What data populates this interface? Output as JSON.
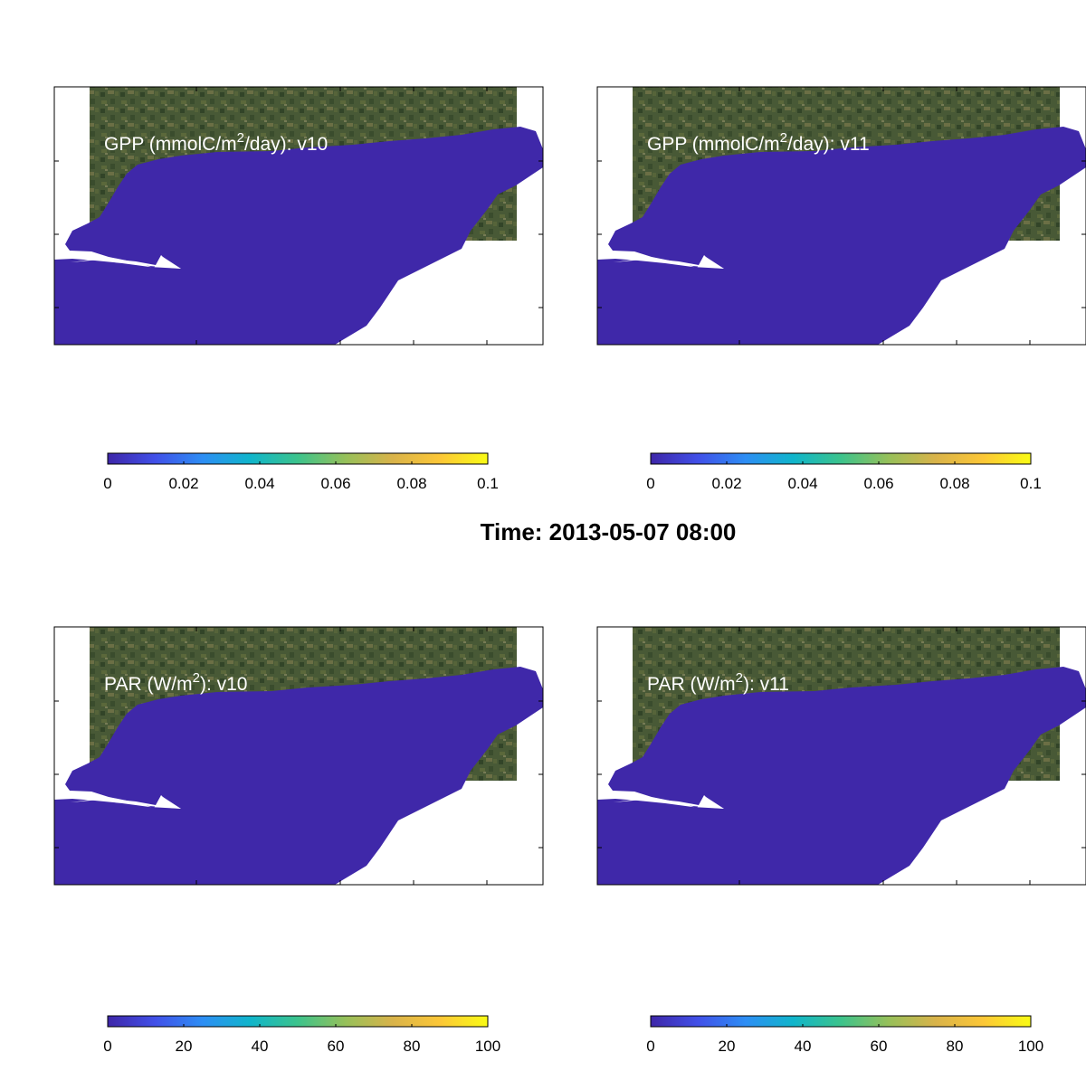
{
  "suptitle": "Time: 2013-05-07 08:00",
  "colors": {
    "water_fill": "#3f28a9",
    "land_base": "#4a5a36",
    "frame": "#000000",
    "colormap": [
      "#3e26a8",
      "#4150e8",
      "#2d8ef4",
      "#10b5cb",
      "#3cc38c",
      "#96c05a",
      "#e1b44c",
      "#fcc737",
      "#f9fb15"
    ]
  },
  "panels": [
    {
      "id": "gpp-v10",
      "title_main": "GPP (mmolC/m",
      "title_sup": "2",
      "title_tail": "/day): v10",
      "colorbar": {
        "ticks": [
          "0",
          "0.02",
          "0.04",
          "0.06",
          "0.08",
          "0.1"
        ],
        "min": 0,
        "max": 0.1
      }
    },
    {
      "id": "gpp-v11",
      "title_main": "GPP (mmolC/m",
      "title_sup": "2",
      "title_tail": "/day): v11",
      "colorbar": {
        "ticks": [
          "0",
          "0.02",
          "0.04",
          "0.06",
          "0.08",
          "0.1"
        ],
        "min": 0,
        "max": 0.1
      }
    },
    {
      "id": "par-v10",
      "title_main": "PAR (W/m",
      "title_sup": "2",
      "title_tail": "): v10",
      "colorbar": {
        "ticks": [
          "0",
          "20",
          "40",
          "60",
          "80",
          "100"
        ],
        "min": 0,
        "max": 100
      }
    },
    {
      "id": "par-v11",
      "title_main": "PAR (W/m",
      "title_sup": "2",
      "title_tail": "): v11",
      "colorbar": {
        "ticks": [
          "0",
          "20",
          "40",
          "60",
          "80",
          "100"
        ],
        "min": 0,
        "max": 100
      }
    }
  ]
}
